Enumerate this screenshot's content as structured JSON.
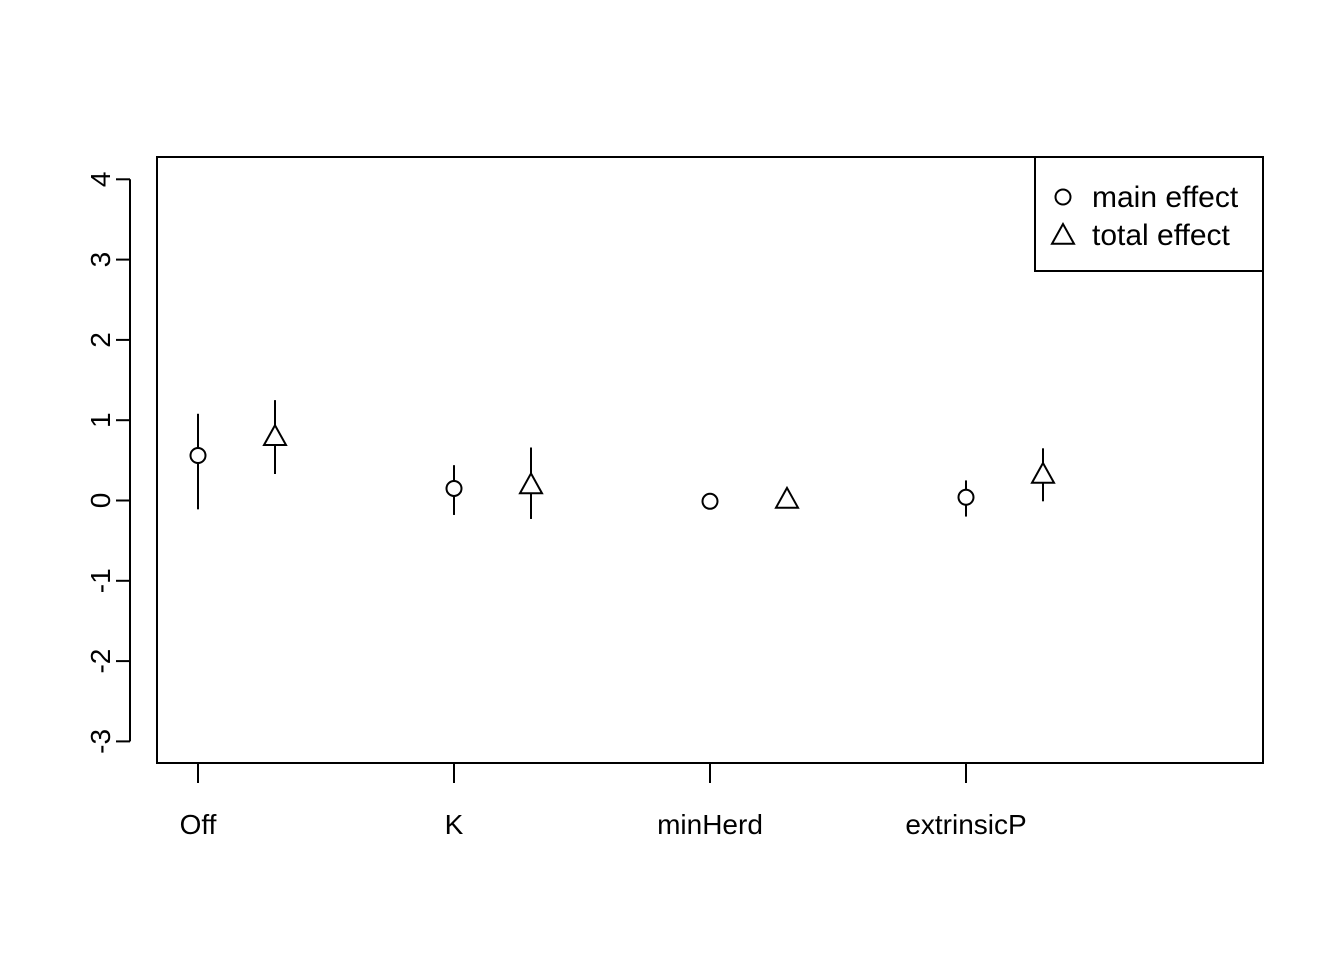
{
  "chart_data": {
    "type": "scatter",
    "title": "",
    "xlabel": "",
    "ylabel": "",
    "categories": [
      "Off",
      "K",
      "minHerd",
      "extrinsicP"
    ],
    "ylim": [
      -3.25,
      4.3
    ],
    "yticks": [
      "-3",
      "-2",
      "-1",
      "0",
      "1",
      "2",
      "3",
      "4"
    ],
    "grid": false,
    "legend_position": "top-right",
    "series": [
      {
        "name": "main effect",
        "marker": "circle",
        "values": [
          0.56,
          0.15,
          -0.01,
          0.04
        ],
        "lower": [
          -0.11,
          -0.18,
          -0.01,
          -0.2
        ],
        "upper": [
          1.08,
          0.44,
          -0.01,
          0.25
        ]
      },
      {
        "name": "total effect",
        "marker": "triangle",
        "values": [
          0.8,
          0.2,
          0.02,
          0.33
        ],
        "lower": [
          0.33,
          -0.23,
          0.02,
          -0.01
        ],
        "upper": [
          1.25,
          0.66,
          0.02,
          0.65
        ]
      }
    ]
  }
}
